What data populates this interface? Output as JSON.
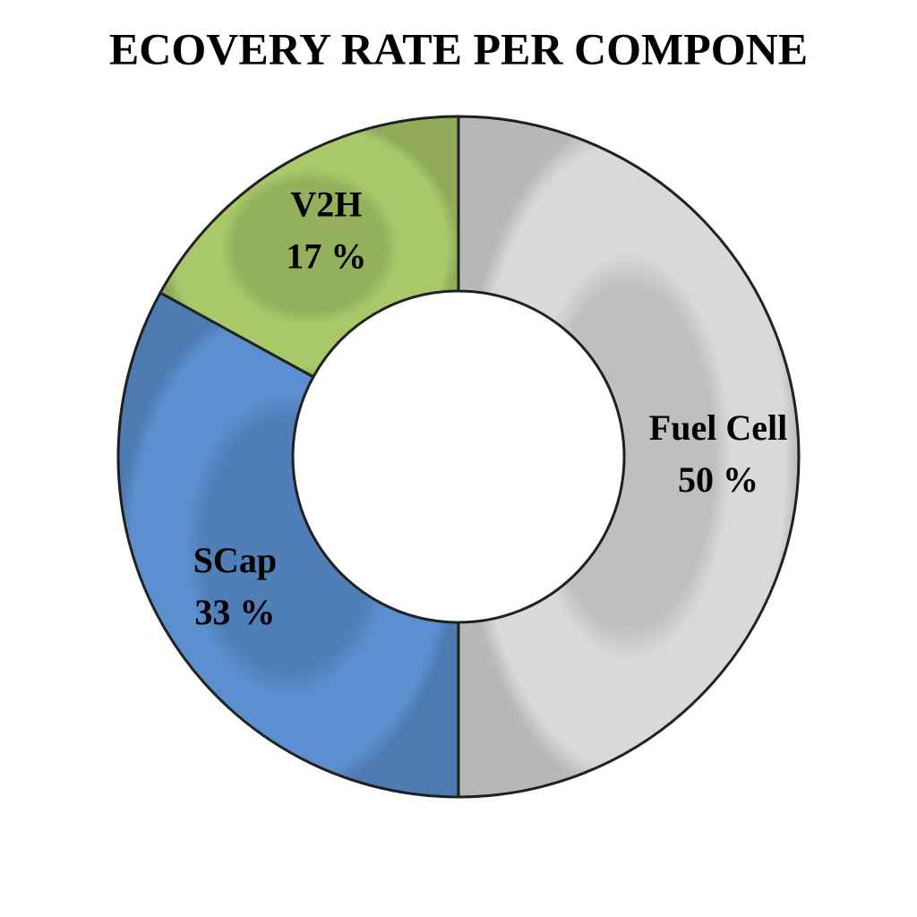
{
  "chart_data": {
    "type": "donut",
    "title": "ECOVERY RATE PER COMPONE",
    "categories": [
      "Fuel Cell",
      "SCap",
      "V2H"
    ],
    "values": [
      50,
      33,
      17
    ],
    "value_labels": [
      "50 %",
      "33 %",
      "17 %"
    ],
    "colors": [
      "#d9d9d9",
      "#5b8fd0",
      "#a9c86a"
    ]
  }
}
